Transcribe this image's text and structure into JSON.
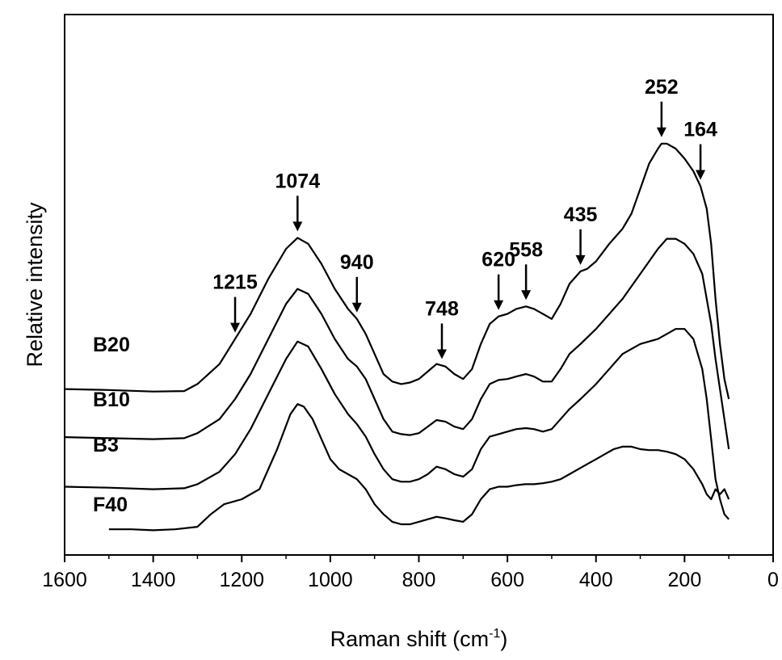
{
  "chart_data": {
    "type": "line",
    "title": "",
    "xlabel": "Raman shift (cm",
    "xlabel_sup": "-1",
    "xlabel_close": ")",
    "ylabel": "Relative intensity",
    "xlim": [
      1600,
      0
    ],
    "x_ticks": [
      1600,
      1400,
      1200,
      1000,
      800,
      600,
      400,
      200,
      0
    ],
    "x_tick_labels": [
      "1600",
      "1400",
      "1200",
      "1000",
      "800",
      "600",
      "400",
      "200",
      "0"
    ],
    "y_ticks_shown": false,
    "ylim": [
      0,
      1
    ],
    "grid": false,
    "legend": "none (series labelled inline at left)",
    "series": [
      {
        "name": "B20",
        "x": [
          1600,
          1500,
          1400,
          1330,
          1300,
          1250,
          1215,
          1180,
          1140,
          1100,
          1074,
          1050,
          1020,
          990,
          960,
          940,
          920,
          900,
          880,
          860,
          840,
          820,
          800,
          780,
          760,
          740,
          720,
          700,
          680,
          660,
          640,
          620,
          600,
          580,
          558,
          540,
          520,
          500,
          480,
          460,
          435,
          420,
          400,
          370,
          340,
          320,
          300,
          280,
          260,
          252,
          240,
          220,
          200,
          180,
          164,
          150,
          140,
          130,
          120,
          110,
          100
        ],
        "y": [
          0.32,
          0.318,
          0.315,
          0.316,
          0.33,
          0.37,
          0.42,
          0.47,
          0.54,
          0.6,
          0.622,
          0.61,
          0.57,
          0.52,
          0.48,
          0.46,
          0.43,
          0.39,
          0.35,
          0.335,
          0.33,
          0.333,
          0.34,
          0.355,
          0.37,
          0.365,
          0.35,
          0.34,
          0.36,
          0.41,
          0.45,
          0.465,
          0.47,
          0.48,
          0.485,
          0.48,
          0.47,
          0.46,
          0.49,
          0.53,
          0.555,
          0.56,
          0.575,
          0.61,
          0.64,
          0.67,
          0.72,
          0.77,
          0.8,
          0.81,
          0.81,
          0.8,
          0.78,
          0.755,
          0.725,
          0.68,
          0.61,
          0.5,
          0.41,
          0.34,
          0.3
        ]
      },
      {
        "name": "B10",
        "x": [
          1600,
          1500,
          1400,
          1330,
          1300,
          1250,
          1215,
          1180,
          1140,
          1100,
          1074,
          1050,
          1020,
          990,
          960,
          940,
          920,
          900,
          880,
          860,
          840,
          820,
          800,
          780,
          760,
          740,
          720,
          700,
          680,
          660,
          640,
          620,
          600,
          580,
          558,
          540,
          520,
          500,
          480,
          460,
          435,
          400,
          370,
          340,
          300,
          260,
          240,
          220,
          200,
          180,
          160,
          140,
          130,
          120,
          110,
          100
        ],
        "y": [
          0.224,
          0.222,
          0.22,
          0.222,
          0.232,
          0.26,
          0.3,
          0.35,
          0.42,
          0.49,
          0.52,
          0.51,
          0.47,
          0.42,
          0.38,
          0.365,
          0.34,
          0.3,
          0.26,
          0.235,
          0.23,
          0.228,
          0.232,
          0.245,
          0.258,
          0.255,
          0.245,
          0.24,
          0.26,
          0.3,
          0.33,
          0.338,
          0.34,
          0.345,
          0.35,
          0.345,
          0.335,
          0.335,
          0.36,
          0.39,
          0.41,
          0.44,
          0.47,
          0.5,
          0.55,
          0.6,
          0.62,
          0.62,
          0.61,
          0.59,
          0.55,
          0.45,
          0.38,
          0.32,
          0.26,
          0.2
        ]
      },
      {
        "name": "B3",
        "x": [
          1600,
          1500,
          1400,
          1330,
          1300,
          1250,
          1215,
          1180,
          1140,
          1100,
          1074,
          1050,
          1020,
          990,
          960,
          940,
          920,
          900,
          880,
          860,
          840,
          820,
          800,
          780,
          760,
          740,
          720,
          700,
          680,
          660,
          640,
          620,
          600,
          580,
          558,
          540,
          520,
          500,
          480,
          460,
          435,
          400,
          370,
          340,
          300,
          260,
          240,
          220,
          200,
          180,
          160,
          150,
          140,
          130,
          120,
          110,
          100
        ],
        "y": [
          0.125,
          0.123,
          0.12,
          0.122,
          0.13,
          0.155,
          0.19,
          0.24,
          0.31,
          0.38,
          0.415,
          0.405,
          0.36,
          0.31,
          0.27,
          0.25,
          0.225,
          0.19,
          0.16,
          0.14,
          0.135,
          0.135,
          0.14,
          0.15,
          0.165,
          0.16,
          0.15,
          0.145,
          0.16,
          0.2,
          0.225,
          0.23,
          0.235,
          0.24,
          0.242,
          0.24,
          0.235,
          0.24,
          0.26,
          0.28,
          0.3,
          0.33,
          0.36,
          0.39,
          0.41,
          0.42,
          0.43,
          0.44,
          0.44,
          0.42,
          0.36,
          0.3,
          0.22,
          0.14,
          0.1,
          0.07,
          0.06
        ]
      },
      {
        "name": "F40",
        "x": [
          1500,
          1450,
          1400,
          1350,
          1300,
          1270,
          1240,
          1200,
          1160,
          1120,
          1090,
          1074,
          1060,
          1040,
          1020,
          1000,
          980,
          960,
          940,
          920,
          900,
          880,
          860,
          840,
          820,
          800,
          780,
          760,
          740,
          720,
          700,
          680,
          660,
          640,
          620,
          600,
          580,
          560,
          540,
          520,
          500,
          480,
          460,
          440,
          420,
          400,
          380,
          360,
          340,
          320,
          300,
          280,
          260,
          240,
          220,
          200,
          180,
          160,
          150,
          140,
          130,
          120,
          110,
          100
        ],
        "y": [
          0.04,
          0.04,
          0.038,
          0.04,
          0.045,
          0.07,
          0.09,
          0.1,
          0.12,
          0.2,
          0.27,
          0.29,
          0.285,
          0.26,
          0.22,
          0.18,
          0.16,
          0.15,
          0.14,
          0.12,
          0.09,
          0.07,
          0.055,
          0.05,
          0.05,
          0.055,
          0.06,
          0.065,
          0.062,
          0.058,
          0.055,
          0.07,
          0.1,
          0.12,
          0.125,
          0.125,
          0.128,
          0.13,
          0.13,
          0.132,
          0.135,
          0.14,
          0.15,
          0.16,
          0.17,
          0.18,
          0.19,
          0.2,
          0.205,
          0.205,
          0.2,
          0.198,
          0.198,
          0.195,
          0.19,
          0.18,
          0.16,
          0.13,
          0.11,
          0.1,
          0.12,
          0.11,
          0.12,
          0.1
        ]
      }
    ],
    "annotations": [
      {
        "label": "1215",
        "x": 1215
      },
      {
        "label": "1074",
        "x": 1074
      },
      {
        "label": "940",
        "x": 940
      },
      {
        "label": "748",
        "x": 748
      },
      {
        "label": "620",
        "x": 620
      },
      {
        "label": "558",
        "x": 558
      },
      {
        "label": "435",
        "x": 435
      },
      {
        "label": "252",
        "x": 252
      },
      {
        "label": "164",
        "x": 164
      }
    ]
  }
}
